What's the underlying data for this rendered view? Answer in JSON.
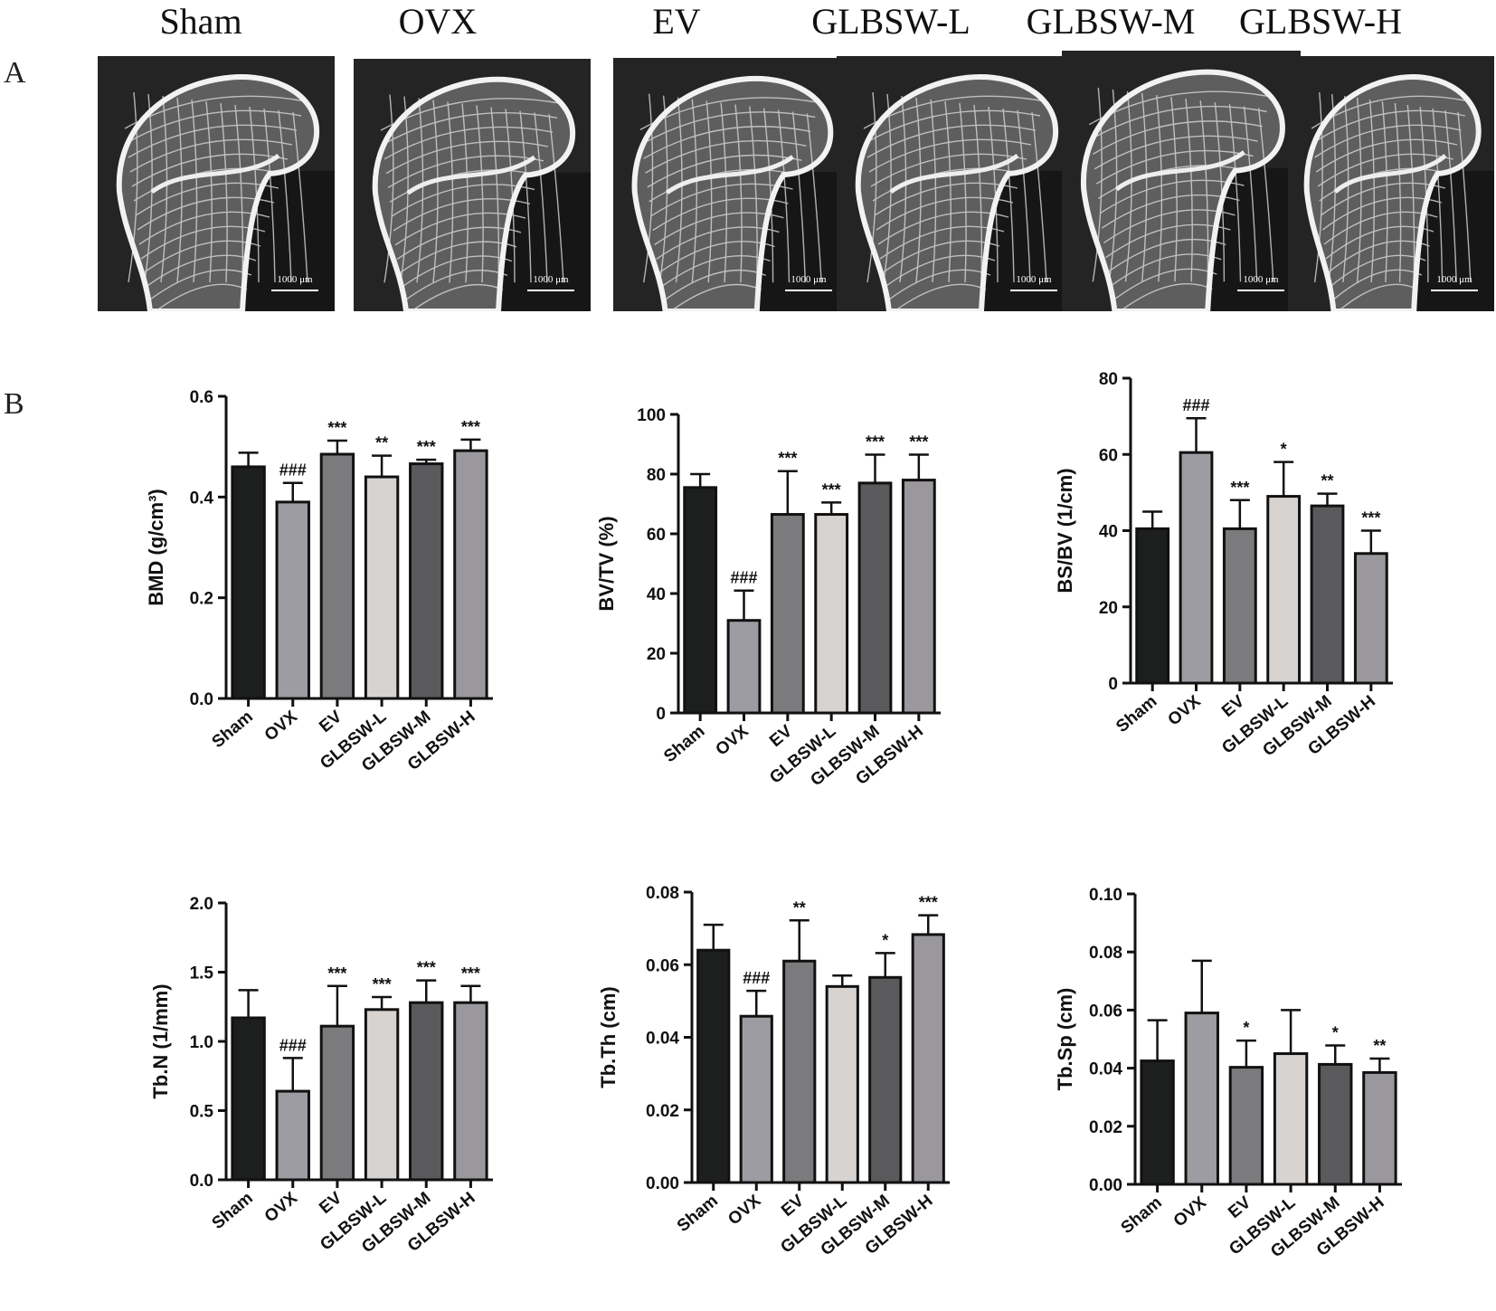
{
  "panel_a": {
    "letter": "A",
    "groups": [
      "Sham",
      "OVX",
      "EV",
      "GLBSW-L",
      "GLBSW-M",
      "GLBSW-H"
    ],
    "scale_bar": "1000 μm"
  },
  "panel_b": {
    "letter": "B"
  },
  "colors": {
    "Sham": "#1c1f1e",
    "OVX": "#9e9ca3",
    "EV": "#7b7b7e",
    "GLBSW-L": "#d6d3d0",
    "GLBSW-M": "#5a595c",
    "GLBSW-H": "#9a989c"
  },
  "chart_data": [
    {
      "type": "bar",
      "ylabel": "BMD (g/cm³)",
      "categories": [
        "Sham",
        "OVX",
        "EV",
        "GLBSW-L",
        "GLBSW-M",
        "GLBSW-H"
      ],
      "values": [
        0.46,
        0.39,
        0.485,
        0.44,
        0.466,
        0.492
      ],
      "errors": [
        0.028,
        0.038,
        0.027,
        0.042,
        0.008,
        0.022
      ],
      "annotations": [
        "",
        "###",
        "***",
        "**",
        "***",
        "***"
      ],
      "ylim": [
        0,
        0.6
      ],
      "yticks": [
        "0.0",
        "0.2",
        "0.4",
        "0.6"
      ]
    },
    {
      "type": "bar",
      "ylabel": "BV/TV (%)",
      "categories": [
        "Sham",
        "OVX",
        "EV",
        "GLBSW-L",
        "GLBSW-M",
        "GLBSW-H"
      ],
      "values": [
        75.5,
        31,
        66.5,
        66.5,
        77,
        78
      ],
      "errors": [
        4.5,
        10,
        14.5,
        4,
        9.5,
        8.5
      ],
      "annotations": [
        "",
        "###",
        "***",
        "***",
        "***",
        "***"
      ],
      "ylim": [
        0,
        100
      ],
      "yticks": [
        "0",
        "20",
        "40",
        "60",
        "80",
        "100"
      ]
    },
    {
      "type": "bar",
      "ylabel": "BS/BV (1/cm)",
      "categories": [
        "Sham",
        "OVX",
        "EV",
        "GLBSW-L",
        "GLBSW-M",
        "GLBSW-H"
      ],
      "values": [
        40.5,
        60.5,
        40.5,
        49,
        46.5,
        34
      ],
      "errors": [
        4.5,
        9,
        7.5,
        9,
        3.2,
        6
      ],
      "annotations": [
        "",
        "###",
        "***",
        "*",
        "**",
        "***"
      ],
      "ylim": [
        0,
        80
      ],
      "yticks": [
        "0",
        "20",
        "40",
        "60",
        "80"
      ]
    },
    {
      "type": "bar",
      "ylabel": "Tb.N (1/mm)",
      "categories": [
        "Sham",
        "OVX",
        "EV",
        "GLBSW-L",
        "GLBSW-M",
        "GLBSW-H"
      ],
      "values": [
        1.17,
        0.64,
        1.11,
        1.23,
        1.28,
        1.28
      ],
      "errors": [
        0.2,
        0.24,
        0.29,
        0.09,
        0.16,
        0.12
      ],
      "annotations": [
        "",
        "###",
        "***",
        "***",
        "***",
        "***"
      ],
      "ylim": [
        0,
        2.0
      ],
      "yticks": [
        "0.0",
        "0.5",
        "1.0",
        "1.5",
        "2.0"
      ]
    },
    {
      "type": "bar",
      "ylabel": "Tb.Th (cm)",
      "categories": [
        "Sham",
        "OVX",
        "EV",
        "GLBSW-L",
        "GLBSW-M",
        "GLBSW-H"
      ],
      "values": [
        0.064,
        0.0458,
        0.061,
        0.054,
        0.0565,
        0.0683
      ],
      "errors": [
        0.007,
        0.007,
        0.0112,
        0.003,
        0.0067,
        0.0053
      ],
      "annotations": [
        "",
        "###",
        "**",
        "",
        "*",
        "***"
      ],
      "ylim": [
        0,
        0.08
      ],
      "yticks": [
        "0.00",
        "0.02",
        "0.04",
        "0.06",
        "0.08"
      ]
    },
    {
      "type": "bar",
      "ylabel": "Tb.Sp (cm)",
      "categories": [
        "Sham",
        "OVX",
        "EV",
        "GLBSW-L",
        "GLBSW-M",
        "GLBSW-H"
      ],
      "values": [
        0.0425,
        0.059,
        0.0403,
        0.045,
        0.0413,
        0.0385
      ],
      "errors": [
        0.014,
        0.018,
        0.0092,
        0.015,
        0.0065,
        0.0048
      ],
      "annotations": [
        "",
        "",
        "*",
        "",
        "*",
        "**"
      ],
      "ylim": [
        0,
        0.1
      ],
      "yticks": [
        "0.00",
        "0.02",
        "0.04",
        "0.06",
        "0.08",
        "0.10"
      ]
    }
  ]
}
